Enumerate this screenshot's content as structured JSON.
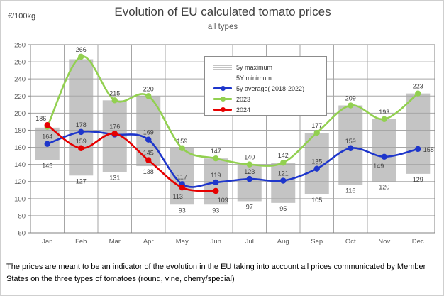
{
  "page": {
    "unit_label": "€/100kg",
    "title": "Evolution of EU calculated tomato prices",
    "subtitle": "all types",
    "footer": "The prices are meant to be an indicator of the evolution in the EU taking into account all prices communicated by Member States on the three types of tomatoes (round, vine, cherry/special)"
  },
  "legend": {
    "items": [
      {
        "label": "5y maximum",
        "swatch": "bar",
        "color": "#c4c4c4"
      },
      {
        "label": "5Y minimum",
        "swatch": "none",
        "color": "#ffffff"
      },
      {
        "label": "5y average( 2018-2022)",
        "swatch": "line-marker",
        "color": "#1e36cb"
      },
      {
        "label": "2023",
        "swatch": "line-marker",
        "color": "#92d050"
      },
      {
        "label": "2024",
        "swatch": "line-marker",
        "color": "#e60000"
      }
    ]
  },
  "chart_data": {
    "type": "line",
    "subtype": "range-bars with smoothed line series",
    "title": "Evolution of EU calculated tomato prices",
    "subtitle": "all types",
    "ylabel": "€/100kg",
    "categories": [
      "Jan",
      "Feb",
      "Mar",
      "Apr",
      "May",
      "Jun",
      "Jul",
      "Aug",
      "Sep",
      "Oct",
      "Nov",
      "Dec"
    ],
    "y_axis": {
      "min": 60,
      "max": 280,
      "step": 20
    },
    "grid": true,
    "legend_position": "inside-top-center",
    "bars": {
      "max_name": "5y maximum",
      "min_name": "5Y minimum",
      "color": "#c4c4c4",
      "max": [
        183,
        263,
        215,
        220,
        159,
        147,
        140,
        142,
        177,
        209,
        193,
        223
      ],
      "min": [
        145,
        127,
        131,
        138,
        93,
        93,
        97,
        95,
        105,
        116,
        120,
        129
      ],
      "min_labels": [
        145,
        127,
        131,
        138,
        93,
        93,
        97,
        95,
        105,
        116,
        120,
        129
      ]
    },
    "series": [
      {
        "name": "5y average( 2018-2022)",
        "color": "#1e36cb",
        "values": [
          164,
          178,
          175,
          169,
          117,
          119,
          123,
          121,
          135,
          159,
          149,
          158
        ],
        "labels": [
          164,
          178,
          null,
          169,
          117,
          119,
          123,
          121,
          135,
          159,
          149,
          158
        ]
      },
      {
        "name": "2023",
        "color": "#92d050",
        "values": [
          184,
          266,
          215,
          220,
          159,
          147,
          140,
          142,
          177,
          209,
          193,
          223
        ],
        "labels": [
          null,
          266,
          215,
          220,
          159,
          147,
          140,
          142,
          177,
          209,
          193,
          223
        ]
      },
      {
        "name": "2024",
        "color": "#e60000",
        "values": [
          186,
          159,
          176,
          145,
          113,
          109
        ],
        "labels": [
          186,
          159,
          176,
          145,
          113,
          109
        ]
      }
    ]
  }
}
